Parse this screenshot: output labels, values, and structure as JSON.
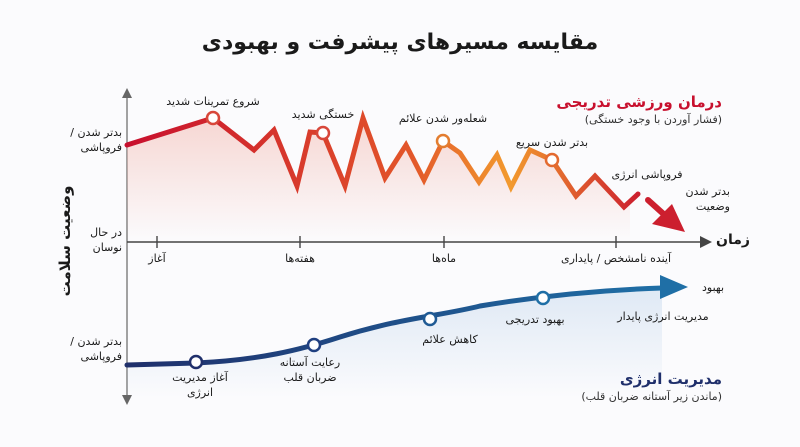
{
  "title": "مقایسه مسیرهای پیشرفت و بهبودی",
  "y_axis_label": "وضعیت سلامت",
  "y_levels": {
    "worse_top": "بدتر شدن /\nفروپاشی",
    "fluctuating": "در حال\nنوسان",
    "worse_bottom": "بدتر شدن /\nفروپاشی"
  },
  "x_axis": {
    "label": "زمان",
    "ticks": [
      "آغاز",
      "هفته‌ها",
      "ماه‌ها",
      "آینده نامشخص / پایداری"
    ]
  },
  "red_path": {
    "title": "درمان ورزشی تدریجی",
    "subtitle": "(فشار آوردن با وجود خستگی)",
    "annotations": [
      "شروع تمرینات شدید",
      "خستگی شدید",
      "شعله‌ور شدن علائم",
      "بدتر شدن سریع",
      "فروپاشی انرژی",
      "بدتر شدن\nوضعیت"
    ],
    "colors": {
      "start": "#c8102e",
      "mid": "#e2552a",
      "end": "#f29a2e",
      "dot_stroke": "#d8473a"
    }
  },
  "blue_path": {
    "title": "مدیریت انرژی",
    "subtitle": "(ماندن زیر آستانه ضربان قلب)",
    "annotations": [
      "آغاز مدیریت\nانرژی",
      "رعایت آستانه\nضربان قلب",
      "کاهش علائم",
      "بهبود تدریجی",
      "مدیریت انرژی پایدار",
      "بهبود"
    ],
    "colors": {
      "line": "#1f2f6b",
      "accent": "#1f7fae"
    }
  }
}
